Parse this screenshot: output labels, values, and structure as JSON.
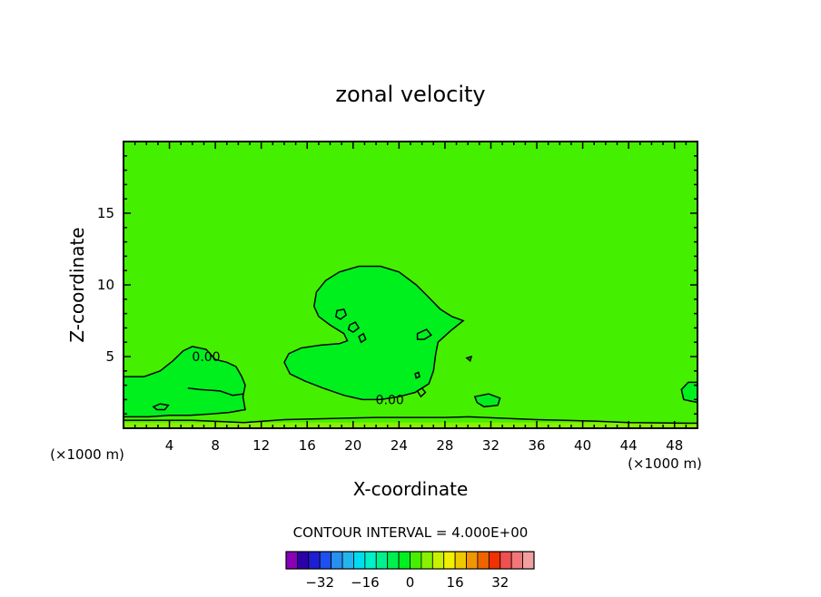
{
  "chart_data": {
    "type": "contour",
    "title": "zonal velocity",
    "xlabel": "X-coordinate",
    "ylabel": "Z-coordinate",
    "x_unit": "(×1000 m)",
    "y_unit": "(×1000 m)",
    "xlim": [
      0,
      50
    ],
    "ylim": [
      0,
      20
    ],
    "x_ticks": [
      4,
      8,
      12,
      16,
      20,
      24,
      28,
      32,
      36,
      40,
      44,
      48
    ],
    "y_ticks": [
      5,
      10,
      15
    ],
    "contour_interval_text": "CONTOUR INTERVAL = 4.000E+00",
    "contour_labels": [
      {
        "text": "0.00",
        "x": 7.2,
        "z": 5.0
      },
      {
        "text": "0.00",
        "x": 23.2,
        "z": 2.0
      }
    ],
    "background_color": "#44f000",
    "inner_color": "#00f01e",
    "colorbar": {
      "colors": [
        "#8a00b8",
        "#2b00a8",
        "#1e1ed2",
        "#1e50f0",
        "#2890f0",
        "#26b4f0",
        "#00dcf0",
        "#00f0c8",
        "#00f090",
        "#00f050",
        "#00f01e",
        "#44f000",
        "#88f000",
        "#c8f000",
        "#f0f000",
        "#f0c800",
        "#f09600",
        "#f06400",
        "#f03200",
        "#f05050",
        "#f07878",
        "#f0a0a0"
      ],
      "tick_labels": [
        "−32",
        "−16",
        "0",
        "16",
        "32"
      ],
      "tick_values": [
        -32,
        -16,
        0,
        16,
        32
      ],
      "range": [
        -44,
        44
      ]
    },
    "regions": [
      {
        "name": "main-bulge-region",
        "points": [
          [
            14.0,
            4.6
          ],
          [
            14.4,
            5.2
          ],
          [
            15.5,
            5.6
          ],
          [
            17.2,
            5.8
          ],
          [
            18.8,
            5.9
          ],
          [
            19.5,
            6.1
          ],
          [
            19.2,
            6.6
          ],
          [
            18.0,
            7.2
          ],
          [
            17.0,
            7.8
          ],
          [
            16.6,
            8.5
          ],
          [
            16.8,
            9.5
          ],
          [
            17.6,
            10.3
          ],
          [
            18.8,
            10.9
          ],
          [
            20.5,
            11.3
          ],
          [
            22.4,
            11.3
          ],
          [
            24.0,
            10.9
          ],
          [
            25.5,
            10.0
          ],
          [
            26.5,
            9.2
          ],
          [
            27.6,
            8.3
          ],
          [
            28.6,
            7.8
          ],
          [
            29.6,
            7.5
          ],
          [
            28.5,
            6.8
          ],
          [
            27.4,
            6.0
          ],
          [
            27.2,
            5.2
          ],
          [
            27.0,
            4.0
          ],
          [
            26.6,
            3.1
          ],
          [
            25.4,
            2.5
          ],
          [
            24.0,
            2.2
          ],
          [
            22.4,
            2.0
          ],
          [
            20.8,
            2.0
          ],
          [
            19.2,
            2.3
          ],
          [
            17.4,
            2.8
          ],
          [
            15.8,
            3.3
          ],
          [
            14.5,
            3.8
          ]
        ]
      },
      {
        "name": "left-lobe-region",
        "points": [
          [
            0,
            3.6
          ],
          [
            1.8,
            3.6
          ],
          [
            3.2,
            4.0
          ],
          [
            4.3,
            4.7
          ],
          [
            5.2,
            5.4
          ],
          [
            6.0,
            5.7
          ],
          [
            7.2,
            5.5
          ],
          [
            8.0,
            4.8
          ],
          [
            9.0,
            4.6
          ],
          [
            9.8,
            4.3
          ],
          [
            10.3,
            3.6
          ],
          [
            10.6,
            3.0
          ],
          [
            10.4,
            2.2
          ],
          [
            10.6,
            1.3
          ],
          [
            9.2,
            1.1
          ],
          [
            7.6,
            1.0
          ],
          [
            5.8,
            0.9
          ],
          [
            4.0,
            0.9
          ],
          [
            2.2,
            0.8
          ],
          [
            1.0,
            0.8
          ],
          [
            0,
            0.8
          ]
        ]
      },
      {
        "name": "right-edge-region",
        "points": [
          [
            50,
            3.2
          ],
          [
            49.2,
            3.2
          ],
          [
            48.6,
            2.7
          ],
          [
            48.8,
            2.0
          ],
          [
            50,
            1.8
          ]
        ]
      },
      {
        "name": "lower-right-patch-region",
        "points": [
          [
            30.6,
            2.2
          ],
          [
            31.8,
            2.4
          ],
          [
            32.8,
            2.1
          ],
          [
            32.6,
            1.6
          ],
          [
            31.4,
            1.5
          ],
          [
            30.8,
            1.8
          ]
        ]
      }
    ],
    "contours": [
      {
        "name": "main-bulge-contour",
        "region": 0
      },
      {
        "name": "left-lobe-contour",
        "region": 1
      },
      {
        "name": "right-edge-contour",
        "region": 2
      },
      {
        "name": "lower-right-patch-contour",
        "region": 3
      },
      {
        "name": "left-inner-contour",
        "closed": false,
        "points": [
          [
            5.6,
            2.8
          ],
          [
            6.6,
            2.7
          ],
          [
            8.4,
            2.6
          ],
          [
            9.5,
            2.3
          ],
          [
            10.5,
            2.4
          ]
        ]
      },
      {
        "name": "small-loop-1",
        "closed": true,
        "points": [
          [
            18.6,
            8.2
          ],
          [
            19.2,
            8.3
          ],
          [
            19.4,
            7.9
          ],
          [
            18.9,
            7.6
          ],
          [
            18.5,
            7.8
          ]
        ]
      },
      {
        "name": "small-loop-2",
        "closed": true,
        "points": [
          [
            19.7,
            7.2
          ],
          [
            20.2,
            7.4
          ],
          [
            20.5,
            7.0
          ],
          [
            20.0,
            6.7
          ],
          [
            19.6,
            6.9
          ]
        ]
      },
      {
        "name": "small-loop-3",
        "closed": true,
        "points": [
          [
            20.5,
            6.4
          ],
          [
            20.9,
            6.6
          ],
          [
            21.1,
            6.2
          ],
          [
            20.7,
            6.0
          ]
        ]
      },
      {
        "name": "small-loop-4",
        "closed": true,
        "points": [
          [
            25.6,
            6.6
          ],
          [
            26.4,
            6.9
          ],
          [
            26.8,
            6.5
          ],
          [
            26.2,
            6.2
          ],
          [
            25.6,
            6.2
          ]
        ]
      },
      {
        "name": "small-loop-5",
        "closed": true,
        "points": [
          [
            25.4,
            3.8
          ],
          [
            25.7,
            3.9
          ],
          [
            25.8,
            3.6
          ],
          [
            25.5,
            3.5
          ]
        ]
      },
      {
        "name": "small-loop-6",
        "closed": true,
        "points": [
          [
            25.6,
            2.6
          ],
          [
            26.0,
            2.8
          ],
          [
            26.3,
            2.5
          ],
          [
            25.9,
            2.2
          ]
        ]
      },
      {
        "name": "small-loop-7",
        "closed": true,
        "points": [
          [
            29.9,
            4.9
          ],
          [
            30.3,
            5.0
          ],
          [
            30.2,
            4.7
          ]
        ]
      },
      {
        "name": "small-loop-8",
        "closed": true,
        "points": [
          [
            2.6,
            1.5
          ],
          [
            3.2,
            1.7
          ],
          [
            3.9,
            1.6
          ],
          [
            3.6,
            1.3
          ],
          [
            2.9,
            1.3
          ]
        ]
      },
      {
        "name": "bottom-contour",
        "closed": false,
        "points": [
          [
            0,
            0.55
          ],
          [
            6,
            0.55
          ],
          [
            10.5,
            0.4
          ],
          [
            14,
            0.6
          ],
          [
            22,
            0.75
          ],
          [
            28,
            0.75
          ],
          [
            30,
            0.8
          ],
          [
            36,
            0.6
          ],
          [
            41,
            0.5
          ],
          [
            44,
            0.4
          ],
          [
            50,
            0.35
          ]
        ]
      }
    ],
    "bottom_band_color": "#88f000"
  }
}
